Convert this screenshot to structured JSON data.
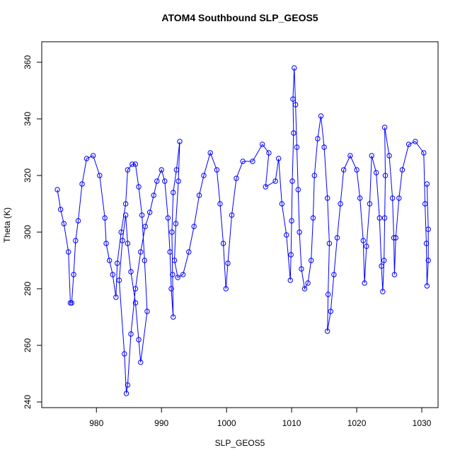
{
  "chart_data": {
    "type": "line",
    "markers": "circle",
    "title": "ATOM4 Southbound SLP_GEOS5",
    "xlabel": "SLP_GEOS5",
    "ylabel": "Theta (K)",
    "color": "#0000ff",
    "x": [
      974,
      974.5,
      975,
      975.7,
      976,
      976.2,
      976.5,
      976.8,
      977.2,
      977.8,
      978.5,
      979.5,
      980.5,
      981.3,
      981.5,
      982,
      982.5,
      983,
      983.2,
      983.8,
      984.5,
      984.8,
      985.5,
      986,
      986.5,
      987,
      987.4,
      987.8,
      986.8,
      986.5,
      986,
      985.3,
      984.8,
      984.5,
      984,
      983.5,
      984.3,
      984.6,
      984.8,
      985.3,
      986,
      986.8,
      987.5,
      988.2,
      988.8,
      989.3,
      990,
      990.5,
      991,
      991.3,
      991.5,
      991.8,
      991.7,
      991.6,
      991.8,
      992.3,
      992.8,
      992.6,
      992.2,
      992,
      992.5,
      993.3,
      994.2,
      995,
      995.8,
      996.5,
      997.5,
      998.5,
      999,
      999.5,
      999.9,
      1000.2,
      1000.8,
      1001.5,
      1002.5,
      1004,
      1005.5,
      1006.5,
      1006,
      1007.5,
      1008,
      1008.5,
      1009.2,
      1009.8,
      1009.9,
      1010,
      1010.1,
      1010.3,
      1010.2,
      1010.4,
      1010.6,
      1010.8,
      1011,
      1011.2,
      1011.5,
      1012,
      1012.5,
      1013,
      1013.3,
      1013.5,
      1014,
      1014.5,
      1015,
      1015.5,
      1015.8,
      1015.6,
      1015.5,
      1016,
      1016.5,
      1017,
      1017.5,
      1018,
      1019,
      1020,
      1020.5,
      1021,
      1021.2,
      1021.5,
      1022,
      1022.3,
      1023,
      1023.5,
      1023.8,
      1024,
      1024.2,
      1024.3,
      1024.4,
      1024.3,
      1025,
      1025.5,
      1025.7,
      1025.8,
      1026,
      1026.5,
      1027,
      1028,
      1029,
      1030.3,
      1030.5,
      1030.7,
      1030.8,
      1031,
      1031,
      1030.8
    ],
    "y": [
      315,
      308,
      303,
      293,
      275,
      275,
      285,
      297,
      304,
      317,
      326,
      327,
      320,
      305,
      296,
      290,
      285,
      277,
      289,
      300,
      310,
      322,
      324,
      324,
      316,
      306,
      290,
      272,
      254,
      262,
      275,
      286,
      296,
      306,
      297,
      283,
      257,
      243,
      246,
      264,
      280,
      293,
      302,
      307,
      313,
      318,
      322,
      318,
      305,
      293,
      280,
      270,
      285,
      300,
      314,
      322,
      332,
      318,
      303,
      290,
      284,
      285,
      293,
      302,
      313,
      320,
      328,
      322,
      310,
      296,
      280,
      289,
      306,
      319,
      325,
      325,
      331,
      328,
      316,
      318,
      326,
      310,
      299,
      283,
      292,
      304,
      318,
      335,
      347,
      358,
      345,
      330,
      315,
      300,
      287,
      280,
      282,
      290,
      305,
      320,
      333,
      341,
      330,
      312,
      296,
      278,
      265,
      272,
      285,
      298,
      310,
      322,
      327,
      322,
      312,
      297,
      282,
      295,
      310,
      327,
      321,
      305,
      288,
      279,
      290,
      305,
      320,
      337,
      327,
      312,
      298,
      285,
      298,
      312,
      322,
      331,
      332,
      328,
      310,
      296,
      281,
      290,
      301,
      317
    ],
    "xlim": [
      971.6,
      1032.5
    ],
    "ylim": [
      238,
      367.25
    ],
    "xticks": [
      980,
      990,
      1000,
      1010,
      1020,
      1030
    ],
    "yticks": [
      240,
      260,
      280,
      300,
      320,
      340,
      360
    ]
  }
}
